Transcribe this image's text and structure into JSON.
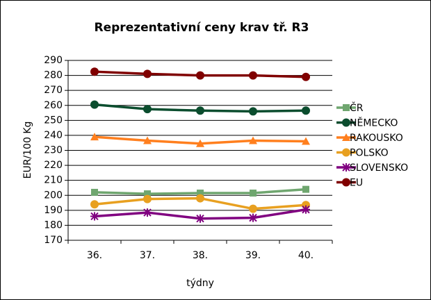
{
  "chart_data": {
    "type": "line",
    "title": "Reprezentativní ceny krav tř. R3",
    "xlabel": "týdny",
    "ylabel": "EUR/100 Kg",
    "categories": [
      "36.",
      "37.",
      "38.",
      "39.",
      "40."
    ],
    "ylim": [
      170,
      290
    ],
    "yticks": [
      170,
      180,
      190,
      200,
      210,
      220,
      230,
      240,
      250,
      260,
      270,
      280,
      290
    ],
    "grid": true,
    "legend": "right",
    "series": [
      {
        "name": "ČR",
        "color": "#6fa66f",
        "marker": "square",
        "values": [
          202,
          201,
          201.5,
          201.5,
          204
        ]
      },
      {
        "name": "NĚMECKO",
        "color": "#0b4d2e",
        "marker": "circle",
        "values": [
          260.5,
          257.5,
          256.5,
          256,
          256.5
        ]
      },
      {
        "name": "RAKOUSKO",
        "color": "#ff7f1e",
        "marker": "triangle",
        "values": [
          239,
          236.5,
          234.5,
          236.5,
          236
        ]
      },
      {
        "name": "POLSKO",
        "color": "#e8a020",
        "marker": "circle",
        "values": [
          194,
          197.5,
          198,
          191,
          193.5
        ]
      },
      {
        "name": "SLOVENSKO",
        "color": "#800080",
        "marker": "star",
        "values": [
          186,
          188.5,
          184.5,
          185,
          190.5
        ]
      },
      {
        "name": "EU",
        "color": "#800000",
        "marker": "circle",
        "values": [
          282.5,
          281,
          280,
          280,
          279
        ]
      }
    ]
  }
}
